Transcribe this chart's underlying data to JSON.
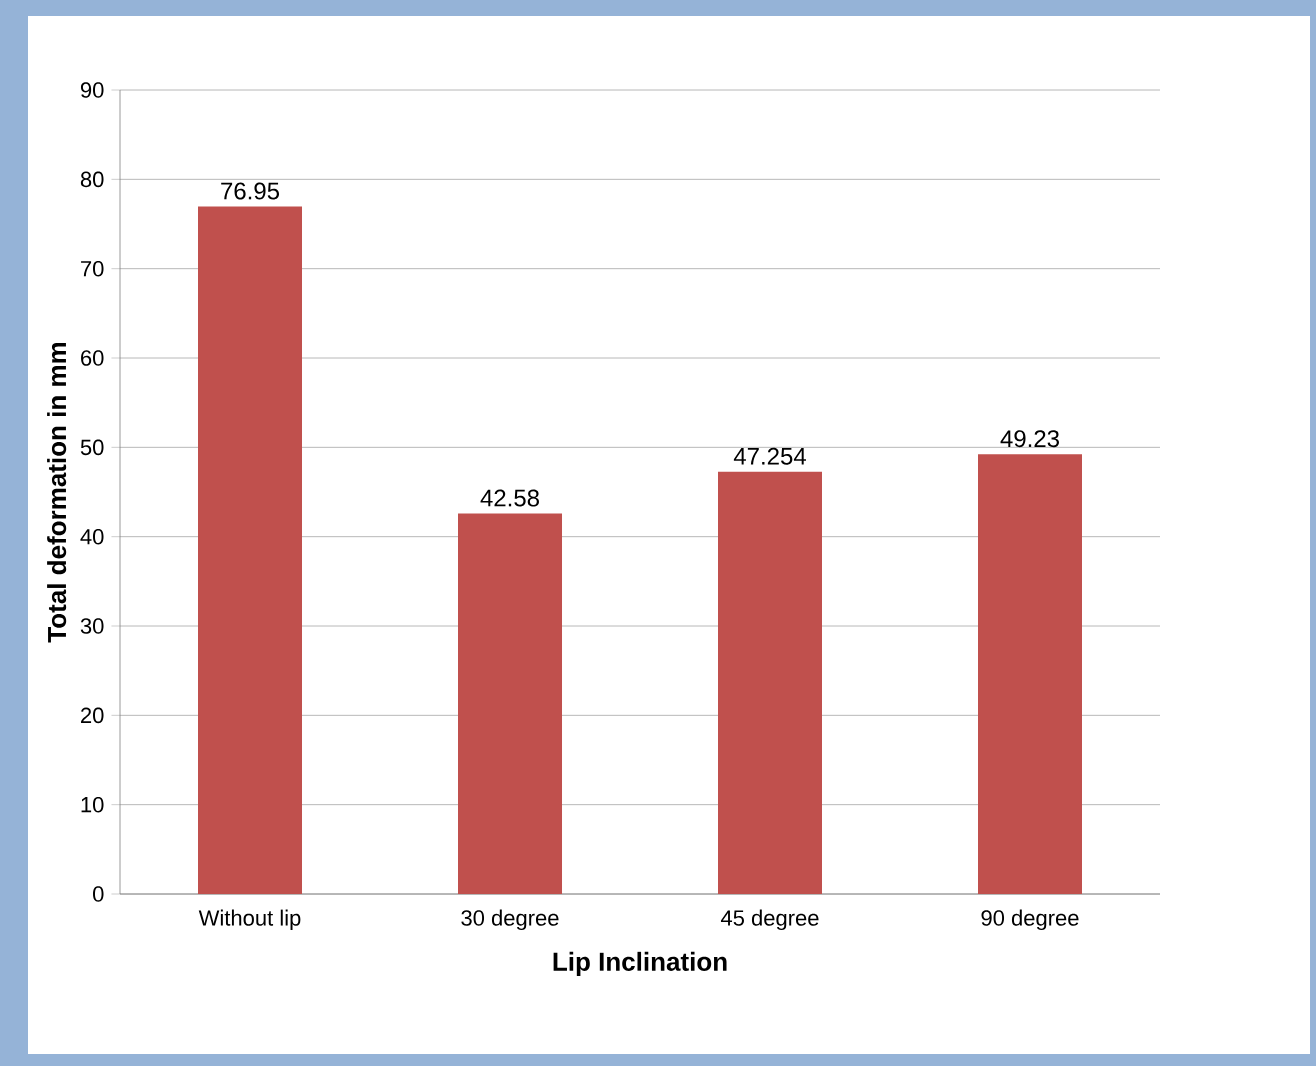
{
  "chart_data": {
    "type": "bar",
    "xlabel": "Lip Inclination",
    "ylabel": "Total deformation in mm",
    "categories": [
      "Without lip",
      "30 degree",
      "45 degree",
      "90 degree"
    ],
    "values": [
      76.95,
      42.58,
      47.254,
      49.23
    ],
    "value_labels": [
      "76.95",
      "42.58",
      "47.254",
      "49.23"
    ],
    "color": "#c0504d",
    "ylim": [
      0,
      90
    ],
    "yticks": [
      0,
      10,
      20,
      30,
      40,
      50,
      60,
      70,
      80,
      90
    ],
    "grid": "y"
  }
}
